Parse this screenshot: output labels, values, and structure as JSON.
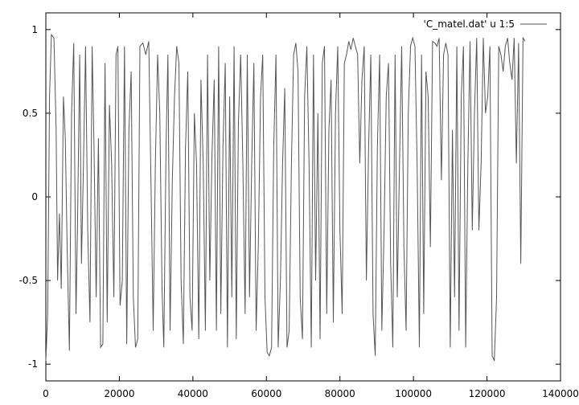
{
  "chart_data": {
    "type": "line",
    "title": "",
    "xlabel": "",
    "ylabel": "",
    "xlim": [
      0,
      140000
    ],
    "ylim": [
      -1.1,
      1.1
    ],
    "xticks": [
      0,
      20000,
      40000,
      60000,
      80000,
      100000,
      120000,
      140000
    ],
    "yticks": [
      -1,
      -0.5,
      0,
      0.5,
      1
    ],
    "grid": false,
    "legend_position": "top-right",
    "series": [
      {
        "name": "'C_matel.dat' u 1:5",
        "color": "#555555",
        "points": [
          [
            0,
            -0.98
          ],
          [
            500,
            -0.7
          ],
          [
            1000,
            0.6
          ],
          [
            1500,
            0.97
          ],
          [
            2200,
            0.95
          ],
          [
            2800,
            0.4
          ],
          [
            3200,
            -0.5
          ],
          [
            3700,
            -0.1
          ],
          [
            4200,
            -0.55
          ],
          [
            4800,
            0.6
          ],
          [
            5300,
            0.35
          ],
          [
            5800,
            -0.3
          ],
          [
            6400,
            -0.92
          ],
          [
            7000,
            0.5
          ],
          [
            7600,
            0.92
          ],
          [
            8200,
            -0.7
          ],
          [
            8600,
            -0.2
          ],
          [
            9200,
            0.85
          ],
          [
            9700,
            -0.4
          ],
          [
            10200,
            0.15
          ],
          [
            10800,
            0.9
          ],
          [
            11400,
            -0.2
          ],
          [
            12000,
            -0.75
          ],
          [
            12600,
            0.9
          ],
          [
            13100,
            0.3
          ],
          [
            13700,
            -0.6
          ],
          [
            14300,
            0.35
          ],
          [
            14900,
            -0.9
          ],
          [
            15500,
            -0.88
          ],
          [
            16100,
            0.8
          ],
          [
            16700,
            -0.75
          ],
          [
            17300,
            0.55
          ],
          [
            17900,
            0.2
          ],
          [
            18500,
            -0.6
          ],
          [
            19100,
            0.85
          ],
          [
            19600,
            0.9
          ],
          [
            20200,
            -0.65
          ],
          [
            20800,
            -0.5
          ],
          [
            21400,
            0.9
          ],
          [
            22000,
            -0.88
          ],
          [
            22600,
            0.4
          ],
          [
            23200,
            0.75
          ],
          [
            23800,
            -0.6
          ],
          [
            24400,
            -0.9
          ],
          [
            25000,
            -0.85
          ],
          [
            25600,
            0.9
          ],
          [
            26400,
            0.92
          ],
          [
            27200,
            0.85
          ],
          [
            28000,
            0.93
          ],
          [
            28600,
            0.1
          ],
          [
            29200,
            -0.8
          ],
          [
            29800,
            0.2
          ],
          [
            30400,
            0.85
          ],
          [
            31000,
            0.5
          ],
          [
            31600,
            -0.55
          ],
          [
            32100,
            -0.9
          ],
          [
            32700,
            0.3
          ],
          [
            33200,
            0.85
          ],
          [
            33800,
            -0.8
          ],
          [
            34400,
            0.1
          ],
          [
            35000,
            0.6
          ],
          [
            35600,
            0.9
          ],
          [
            36200,
            0.8
          ],
          [
            36800,
            -0.5
          ],
          [
            37400,
            -0.88
          ],
          [
            38000,
            0.3
          ],
          [
            38600,
            0.75
          ],
          [
            39200,
            -0.6
          ],
          [
            39800,
            -0.8
          ],
          [
            40400,
            0.5
          ],
          [
            41000,
            0.2
          ],
          [
            41600,
            -0.85
          ],
          [
            42200,
            0.7
          ],
          [
            42800,
            0.2
          ],
          [
            43400,
            -0.8
          ],
          [
            44000,
            0.85
          ],
          [
            44600,
            -0.5
          ],
          [
            45200,
            0.25
          ],
          [
            45800,
            0.7
          ],
          [
            46400,
            -0.8
          ],
          [
            47000,
            0.9
          ],
          [
            47600,
            -0.7
          ],
          [
            48200,
            0.3
          ],
          [
            48800,
            0.8
          ],
          [
            49400,
            -0.9
          ],
          [
            50000,
            0.6
          ],
          [
            50600,
            -0.6
          ],
          [
            51200,
            0.9
          ],
          [
            51800,
            -0.85
          ],
          [
            52400,
            0.45
          ],
          [
            53000,
            0.85
          ],
          [
            53600,
            0.2
          ],
          [
            54200,
            -0.7
          ],
          [
            54800,
            0.85
          ],
          [
            55400,
            -0.6
          ],
          [
            56000,
            0.2
          ],
          [
            56600,
            0.8
          ],
          [
            57200,
            -0.8
          ],
          [
            57800,
            -0.3
          ],
          [
            58400,
            0.6
          ],
          [
            59000,
            0.85
          ],
          [
            59600,
            -0.6
          ],
          [
            60200,
            -0.93
          ],
          [
            60800,
            -0.95
          ],
          [
            61400,
            -0.9
          ],
          [
            62000,
            0.3
          ],
          [
            62600,
            0.85
          ],
          [
            63200,
            -0.9
          ],
          [
            63800,
            -0.5
          ],
          [
            64400,
            0.2
          ],
          [
            65000,
            0.65
          ],
          [
            65600,
            -0.9
          ],
          [
            66200,
            -0.8
          ],
          [
            66800,
            0.2
          ],
          [
            67400,
            0.85
          ],
          [
            68000,
            0.92
          ],
          [
            68600,
            0.75
          ],
          [
            69200,
            -0.6
          ],
          [
            69800,
            -0.85
          ],
          [
            70400,
            0.6
          ],
          [
            71000,
            0.9
          ],
          [
            71600,
            0.2
          ],
          [
            72200,
            -0.9
          ],
          [
            72800,
            0.85
          ],
          [
            73400,
            -0.5
          ],
          [
            74000,
            0.5
          ],
          [
            74600,
            -0.85
          ],
          [
            75200,
            0.8
          ],
          [
            75800,
            0.9
          ],
          [
            76400,
            -0.7
          ],
          [
            77000,
            0.4
          ],
          [
            77600,
            0.7
          ],
          [
            78200,
            -0.75
          ],
          [
            78800,
            0.5
          ],
          [
            79400,
            0.9
          ],
          [
            80000,
            -0.2
          ],
          [
            80600,
            -0.7
          ],
          [
            81200,
            0.8
          ],
          [
            81800,
            0.85
          ],
          [
            82400,
            0.93
          ],
          [
            83000,
            0.88
          ],
          [
            83600,
            0.95
          ],
          [
            84200,
            0.9
          ],
          [
            84800,
            0.85
          ],
          [
            85400,
            0.2
          ],
          [
            86000,
            0.7
          ],
          [
            86600,
            0.9
          ],
          [
            87200,
            -0.5
          ],
          [
            87800,
            0.3
          ],
          [
            88400,
            0.85
          ],
          [
            89000,
            -0.7
          ],
          [
            89600,
            -0.95
          ],
          [
            90200,
            0.3
          ],
          [
            90800,
            0.85
          ],
          [
            91400,
            -0.8
          ],
          [
            92000,
            -0.2
          ],
          [
            92600,
            0.6
          ],
          [
            93200,
            0.8
          ],
          [
            93800,
            -0.4
          ],
          [
            94400,
            -0.9
          ],
          [
            95000,
            0.85
          ],
          [
            95600,
            -0.6
          ],
          [
            96200,
            0.2
          ],
          [
            96800,
            0.9
          ],
          [
            97400,
            -0.3
          ],
          [
            98000,
            -0.8
          ],
          [
            98600,
            0.5
          ],
          [
            99200,
            0.9
          ],
          [
            99800,
            0.95
          ],
          [
            100400,
            0.9
          ],
          [
            101000,
            0.2
          ],
          [
            101600,
            -0.9
          ],
          [
            102200,
            0.85
          ],
          [
            102800,
            -0.7
          ],
          [
            103400,
            0.75
          ],
          [
            104000,
            0.6
          ],
          [
            104600,
            -0.3
          ],
          [
            105200,
            0.93
          ],
          [
            105800,
            0.92
          ],
          [
            106400,
            0.9
          ],
          [
            107000,
            0.95
          ],
          [
            107600,
            0.1
          ],
          [
            108200,
            0.85
          ],
          [
            108800,
            0.92
          ],
          [
            109400,
            0.85
          ],
          [
            110000,
            -0.9
          ],
          [
            110600,
            0.4
          ],
          [
            111200,
            -0.6
          ],
          [
            111800,
            0.9
          ],
          [
            112400,
            -0.8
          ],
          [
            113000,
            0.6
          ],
          [
            113600,
            0.9
          ],
          [
            114200,
            -0.9
          ],
          [
            114800,
            0.2
          ],
          [
            115400,
            0.93
          ],
          [
            116000,
            -0.2
          ],
          [
            116600,
            0.5
          ],
          [
            117200,
            0.95
          ],
          [
            117800,
            -0.2
          ],
          [
            118400,
            0.2
          ],
          [
            119000,
            0.95
          ],
          [
            119600,
            0.5
          ],
          [
            120200,
            0.6
          ],
          [
            120800,
            0.9
          ],
          [
            121400,
            -0.95
          ],
          [
            122000,
            -0.98
          ],
          [
            122600,
            -0.6
          ],
          [
            123200,
            0.9
          ],
          [
            123800,
            0.85
          ],
          [
            124400,
            0.75
          ],
          [
            125000,
            0.9
          ],
          [
            125600,
            0.95
          ],
          [
            126200,
            0.8
          ],
          [
            126800,
            0.7
          ],
          [
            127400,
            0.95
          ],
          [
            128000,
            0.2
          ],
          [
            128600,
            0.92
          ],
          [
            129200,
            -0.4
          ],
          [
            129800,
            0.95
          ],
          [
            130400,
            0.93
          ]
        ]
      }
    ]
  }
}
